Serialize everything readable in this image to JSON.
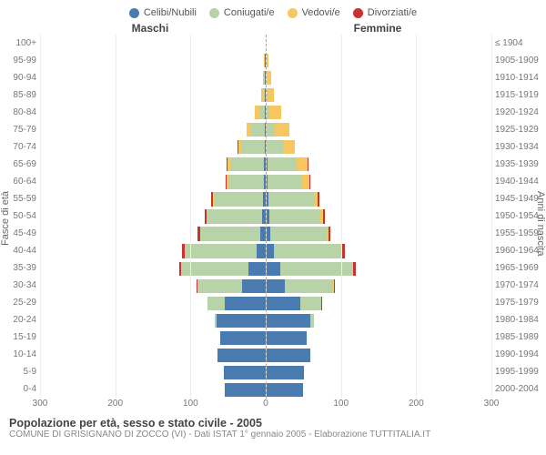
{
  "chart": {
    "type": "population-pyramid",
    "legend": [
      {
        "label": "Celibi/Nubili",
        "color": "#4a7bb0"
      },
      {
        "label": "Coniugati/e",
        "color": "#b8d3a8"
      },
      {
        "label": "Vedovi/e",
        "color": "#f6c760"
      },
      {
        "label": "Divorziati/e",
        "color": "#c83232"
      }
    ],
    "header_left": "Maschi",
    "header_right": "Femmine",
    "ylabel_left": "Fasce di età",
    "ylabel_right": "Anni di nascita",
    "x_max": 300,
    "x_ticks": [
      300,
      200,
      100,
      0,
      100,
      200,
      300
    ],
    "grid_positions_pct": [
      0,
      16.67,
      33.33,
      50,
      66.67,
      83.33,
      100
    ],
    "age_labels": [
      "100+",
      "95-99",
      "90-94",
      "85-89",
      "80-84",
      "75-79",
      "70-74",
      "65-69",
      "60-64",
      "55-59",
      "50-54",
      "45-49",
      "40-44",
      "35-39",
      "30-34",
      "25-29",
      "20-24",
      "15-19",
      "10-14",
      "5-9",
      "0-4"
    ],
    "birth_labels": [
      "≤ 1904",
      "1905-1909",
      "1910-1914",
      "1915-1919",
      "1920-1924",
      "1925-1929",
      "1930-1934",
      "1935-1939",
      "1940-1944",
      "1945-1949",
      "1950-1954",
      "1955-1959",
      "1960-1964",
      "1965-1969",
      "1970-1974",
      "1975-1979",
      "1980-1984",
      "1985-1989",
      "1990-1994",
      "1995-1999",
      "2000-2004"
    ],
    "rows": [
      {
        "m": [
          0,
          0,
          0,
          0
        ],
        "f": [
          0,
          0,
          2,
          0
        ]
      },
      {
        "m": [
          2,
          0,
          2,
          0
        ],
        "f": [
          0,
          0,
          8,
          0
        ]
      },
      {
        "m": [
          2,
          2,
          4,
          0
        ],
        "f": [
          2,
          0,
          12,
          0
        ]
      },
      {
        "m": [
          2,
          3,
          6,
          0
        ],
        "f": [
          2,
          2,
          18,
          0
        ]
      },
      {
        "m": [
          3,
          15,
          10,
          0
        ],
        "f": [
          2,
          8,
          30,
          0
        ]
      },
      {
        "m": [
          3,
          35,
          12,
          0
        ],
        "f": [
          3,
          22,
          38,
          0
        ]
      },
      {
        "m": [
          3,
          62,
          8,
          2
        ],
        "f": [
          3,
          42,
          32,
          0
        ]
      },
      {
        "m": [
          5,
          90,
          6,
          2
        ],
        "f": [
          5,
          78,
          28,
          2
        ]
      },
      {
        "m": [
          5,
          95,
          4,
          2
        ],
        "f": [
          5,
          92,
          18,
          2
        ]
      },
      {
        "m": [
          8,
          130,
          3,
          4
        ],
        "f": [
          8,
          120,
          10,
          4
        ]
      },
      {
        "m": [
          10,
          145,
          2,
          5
        ],
        "f": [
          10,
          135,
          8,
          5
        ]
      },
      {
        "m": [
          14,
          160,
          1,
          6
        ],
        "f": [
          12,
          150,
          5,
          6
        ]
      },
      {
        "m": [
          25,
          190,
          0,
          7
        ],
        "f": [
          22,
          178,
          3,
          7
        ]
      },
      {
        "m": [
          45,
          180,
          0,
          6
        ],
        "f": [
          38,
          192,
          2,
          8
        ]
      },
      {
        "m": [
          62,
          120,
          0,
          3
        ],
        "f": [
          50,
          130,
          1,
          4
        ]
      },
      {
        "m": [
          110,
          45,
          0,
          1
        ],
        "f": [
          92,
          56,
          0,
          2
        ]
      },
      {
        "m": [
          130,
          5,
          0,
          0
        ],
        "f": [
          118,
          10,
          0,
          0
        ]
      },
      {
        "m": [
          120,
          0,
          0,
          0
        ],
        "f": [
          108,
          0,
          0,
          0
        ]
      },
      {
        "m": [
          128,
          0,
          0,
          0
        ],
        "f": [
          118,
          0,
          0,
          0
        ]
      },
      {
        "m": [
          112,
          0,
          0,
          0
        ],
        "f": [
          102,
          0,
          0,
          0
        ]
      },
      {
        "m": [
          108,
          0,
          0,
          0
        ],
        "f": [
          98,
          0,
          0,
          0
        ]
      }
    ],
    "title": "Popolazione per età, sesso e stato civile - 2005",
    "subtitle": "COMUNE DI GRISIGNANO DI ZOCCO (VI) - Dati ISTAT 1° gennaio 2005 - Elaborazione TUTTITALIA.IT"
  }
}
